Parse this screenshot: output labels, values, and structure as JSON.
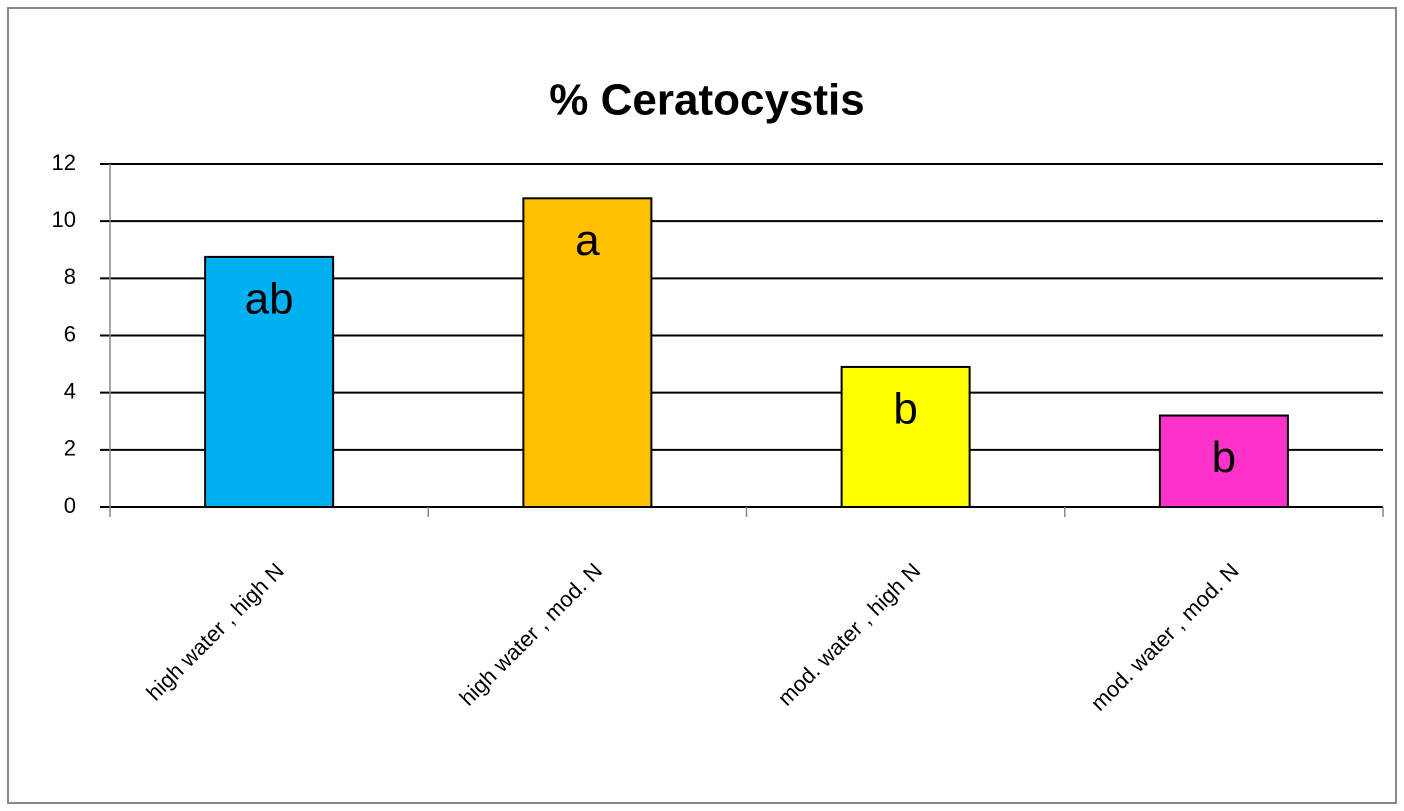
{
  "chart_data": {
    "type": "bar",
    "title": "% Ceratocystis",
    "categories": [
      "high water , high N",
      "high water , mod. N",
      "mod. water , high N",
      "mod. water , mod. N"
    ],
    "values": [
      8.75,
      10.8,
      4.9,
      3.2
    ],
    "colors": [
      "#00b0f0",
      "#ffc000",
      "#ffff00",
      "#ff33cc"
    ],
    "annotations": [
      "ab",
      "a",
      "b",
      "b"
    ],
    "ylim": [
      0,
      12
    ],
    "yticks": [
      0,
      2,
      4,
      6,
      8,
      10,
      12
    ],
    "grid": true
  }
}
